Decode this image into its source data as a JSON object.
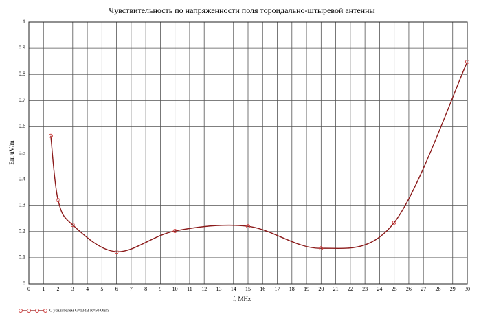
{
  "chart_data": {
    "type": "line",
    "title": "Чувствительность по напряженности поля тороидально-штыревой антенны",
    "xlabel": "f, MHz",
    "ylabel": "Eн, uV/m",
    "x": [
      1.5,
      2,
      3,
      6,
      10,
      15,
      20,
      25,
      30
    ],
    "series": [
      {
        "name": "С усилителем G=13dB R=50 Ohm",
        "color": "#8b1a1a",
        "marker_color": "#d04040",
        "values": [
          0.565,
          0.32,
          0.225,
          0.123,
          0.202,
          0.22,
          0.136,
          0.234,
          0.848
        ]
      }
    ],
    "xlim": [
      0,
      30
    ],
    "xticks": [
      0,
      1,
      2,
      3,
      4,
      5,
      6,
      7,
      8,
      9,
      10,
      11,
      12,
      13,
      14,
      15,
      16,
      17,
      18,
      19,
      20,
      21,
      22,
      23,
      24,
      25,
      26,
      27,
      28,
      29,
      30
    ],
    "ylim": [
      0,
      1
    ],
    "yticks": [
      0,
      0.1,
      0.2,
      0.3,
      0.4,
      0.5,
      0.6,
      0.7,
      0.8,
      0.9,
      1
    ],
    "grid": true,
    "legend": "bottom-left"
  }
}
